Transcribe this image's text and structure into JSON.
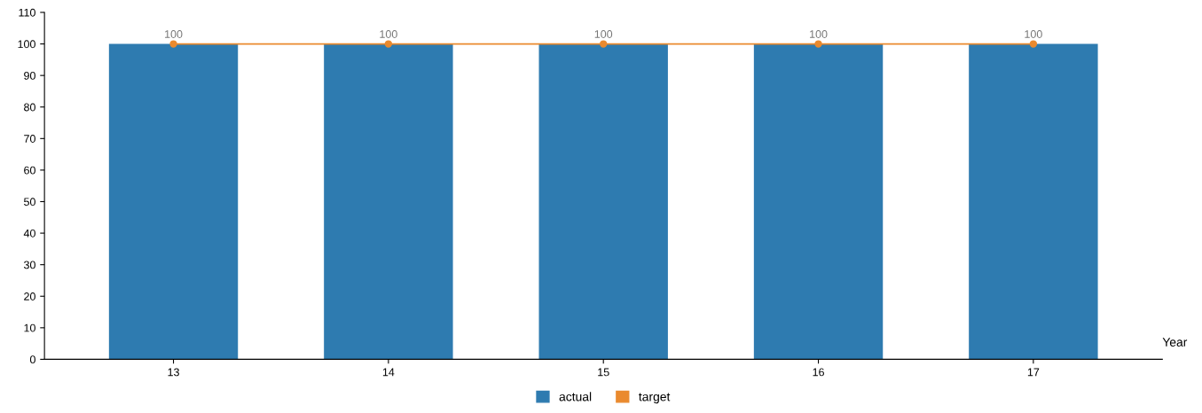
{
  "chart_data": {
    "type": "bar",
    "xlabel": "Year",
    "categories": [
      "13",
      "14",
      "15",
      "16",
      "17"
    ],
    "series": [
      {
        "name": "actual",
        "color": "#2e7bb0",
        "values": [
          100,
          100,
          100,
          100,
          100
        ]
      },
      {
        "name": "target",
        "type": "line",
        "color": "#ea8a2e",
        "values": [
          100,
          100,
          100,
          100,
          100
        ],
        "marker": "circle",
        "value_labels": [
          "100",
          "100",
          "100",
          "100",
          "100"
        ]
      }
    ],
    "ylim": [
      0,
      110
    ],
    "yticks": [
      0,
      10,
      20,
      30,
      40,
      50,
      60,
      70,
      80,
      90,
      100,
      110
    ],
    "grid": false,
    "legend": "bottom"
  }
}
